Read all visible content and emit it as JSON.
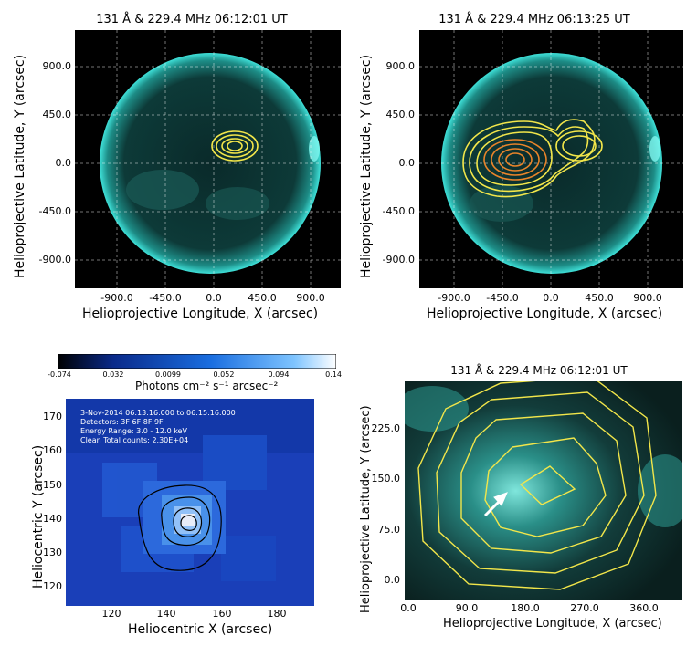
{
  "panels": {
    "top_left": {
      "title": "131 Å & 229.4 MHz  06:12:01 UT",
      "xlabel": "Helioprojective Longitude, X (arcsec)",
      "ylabel": "Helioprojective Latitude, Y (arcsec)",
      "xticks": [
        "-900.0",
        "-450.0",
        "0.0",
        "450.0",
        "900.0"
      ],
      "yticks": [
        "900.0",
        "450.0",
        "0.0",
        "-450.0",
        "-900.0"
      ]
    },
    "top_right": {
      "title": "131 Å & 229.4 MHz  06:13:25 UT",
      "xlabel": "Helioprojective Longitude, X (arcsec)",
      "ylabel": "Helioprojective Latitude, Y (arcsec)",
      "xticks": [
        "-900.0",
        "-450.0",
        "0.0",
        "450.0",
        "900.0"
      ],
      "yticks": [
        "900.0",
        "450.0",
        "0.0",
        "-450.0",
        "-900.0"
      ]
    },
    "bottom_left": {
      "colorbar_ticks": [
        "-0.074",
        "0.032",
        "0.0099",
        "0.052",
        "0.094",
        "0.14"
      ],
      "colorbar_label": "Photons cm⁻² s⁻¹ arcsec⁻²",
      "info_lines": [
        "3-Nov-2014 06:13:16.000 to 06:15:16.000",
        "Detectors: 3F 6F 8F 9F",
        "Energy Range: 3.0 - 12.0 keV",
        "Clean    Total counts: 2.30E+04"
      ],
      "xlabel": "Heliocentric X (arcsec)",
      "ylabel": "Heliocentric Y (arcsec)",
      "xticks": [
        "120",
        "140",
        "160",
        "180"
      ],
      "yticks": [
        "170",
        "160",
        "150",
        "140",
        "130",
        "120"
      ]
    },
    "bottom_right": {
      "title": "131 Å & 229.4 MHz  06:12:01 UT",
      "xlabel": "Helioprojective Longitude, X (arcsec)",
      "ylabel": "Helioprojective Latitude, Y (arcsec)",
      "xticks": [
        "0.0",
        "90.0",
        "180.0",
        "270.0",
        "360.0"
      ],
      "yticks": [
        "225.0",
        "150.0",
        "75.0",
        "0.0"
      ]
    }
  },
  "colors": {
    "sun_bg": "#000000",
    "sun_rim": "#2fd0c8",
    "contour_yellow": "#f2e64a",
    "contour_orange": "#e8842a",
    "hxr_blue": "#1a4ec8"
  }
}
